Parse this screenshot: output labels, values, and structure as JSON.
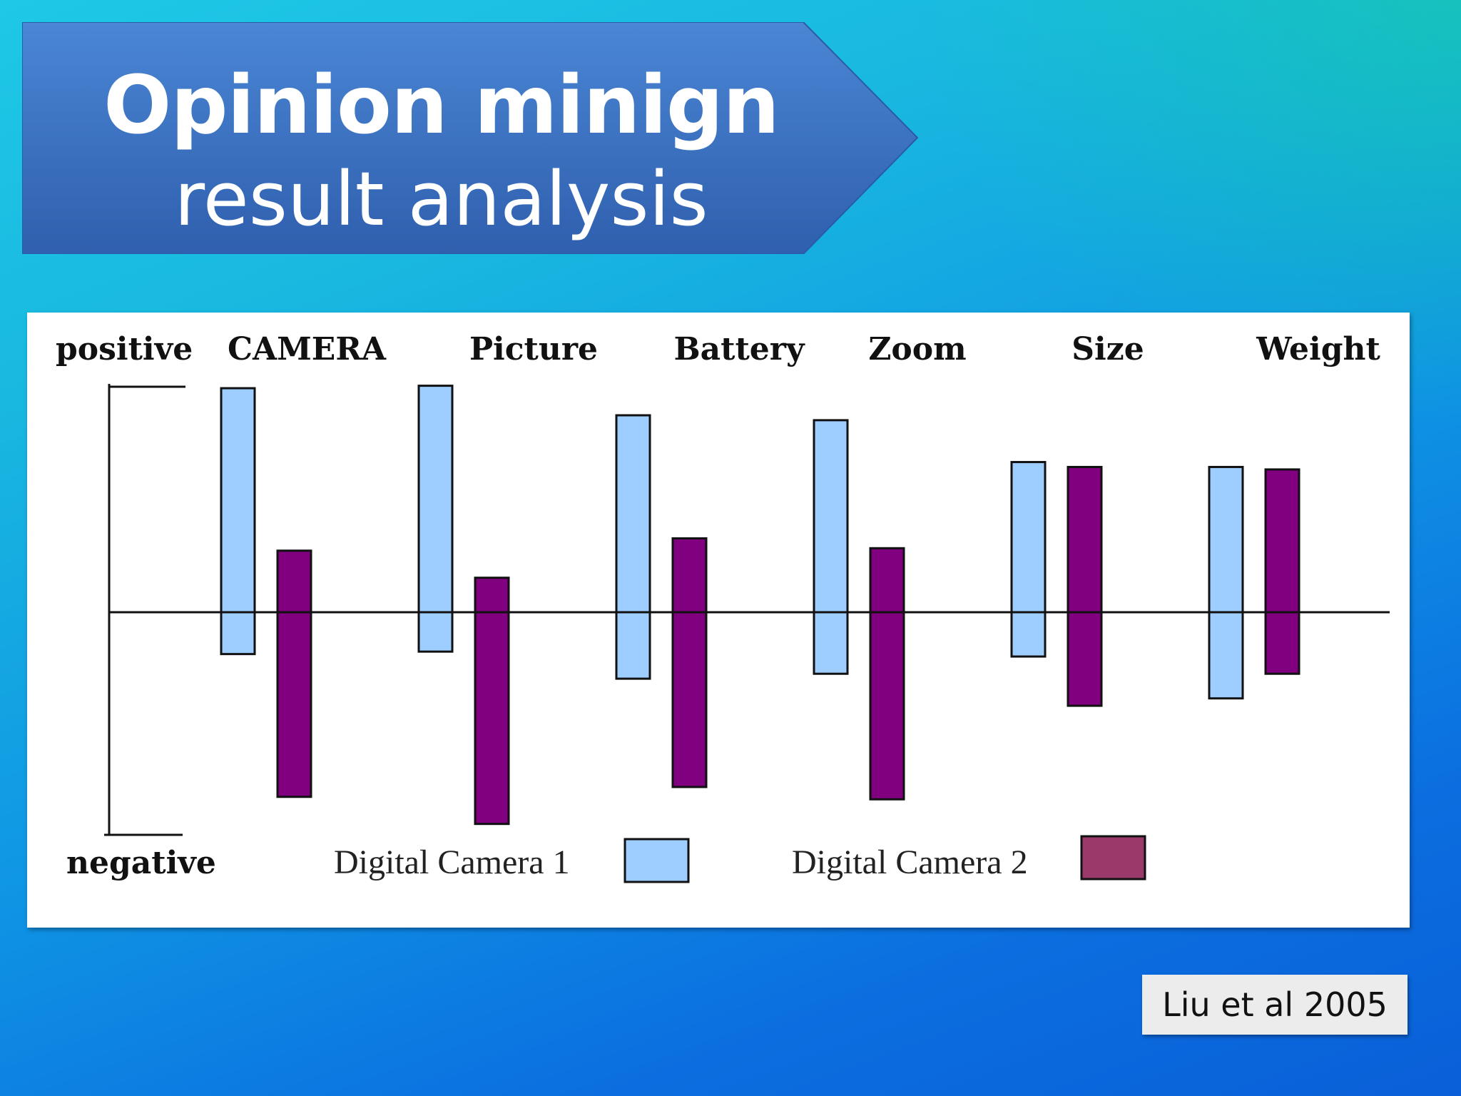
{
  "slide": {
    "title_line1": "Opinion minign",
    "title_line2": "result analysis",
    "citation": "Liu et al 2005",
    "colors": {
      "banner": "#3a78c9",
      "camera1": "#9ecdff",
      "camera2": "#800080"
    }
  },
  "chart_data": {
    "type": "bar",
    "title": "",
    "categories": [
      "CAMERA",
      "Picture",
      "Battery",
      "Zoom",
      "Size",
      "Weight"
    ],
    "axis_top_label": "positive",
    "axis_bottom_label": "negative",
    "ylim": [
      -1,
      1
    ],
    "series": [
      {
        "name": "Digital Camera 1",
        "color": "#9ecdff",
        "positive": [
          0.91,
          0.92,
          0.8,
          0.78,
          0.61,
          0.59
        ],
        "negative": [
          -0.17,
          -0.16,
          -0.27,
          -0.25,
          -0.18,
          -0.35
        ]
      },
      {
        "name": "Digital Camera 2",
        "color": "#800080",
        "positive": [
          0.25,
          0.14,
          0.3,
          0.26,
          0.59,
          0.58
        ],
        "negative": [
          -0.75,
          -0.86,
          -0.71,
          -0.76,
          -0.38,
          -0.25
        ]
      }
    ],
    "legend": {
      "placement": "bottom"
    }
  }
}
